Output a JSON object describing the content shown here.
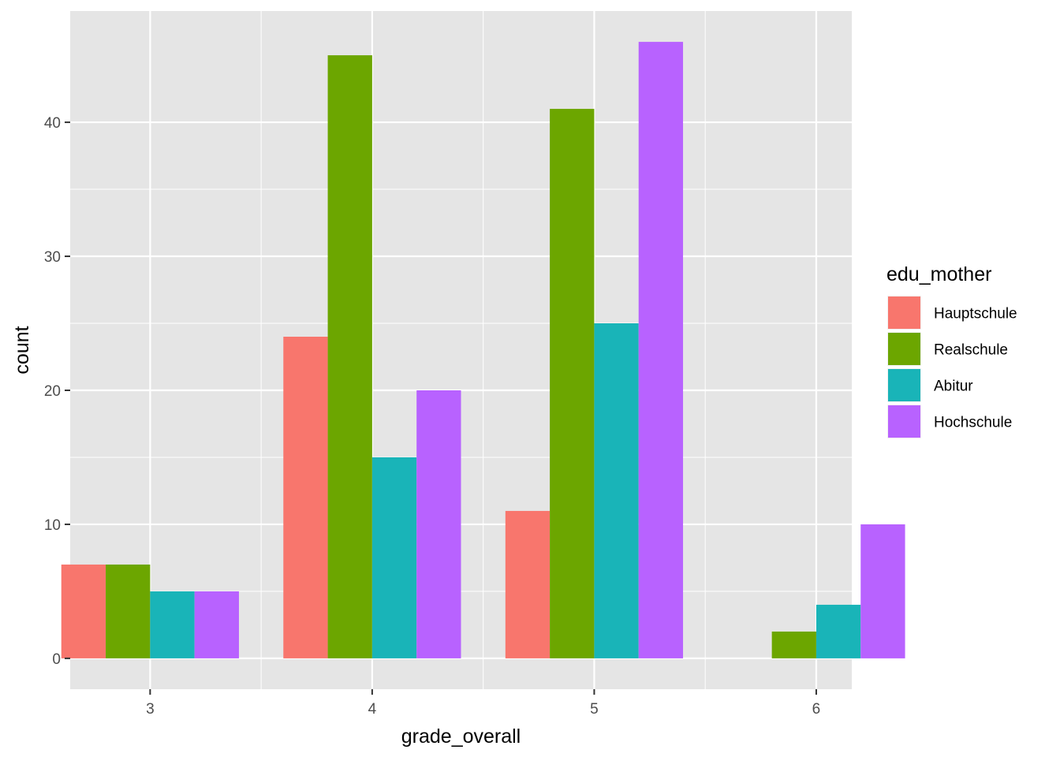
{
  "chart_data": {
    "type": "bar",
    "layout": "dodge",
    "title": "",
    "xlabel": "grade_overall",
    "ylabel": "count",
    "x_ticks": [
      "3",
      "4",
      "5",
      "6"
    ],
    "x_values": [
      3,
      4,
      5,
      6
    ],
    "xlim": [
      2.64,
      6.16
    ],
    "ylim": [
      -2.3,
      48.3
    ],
    "y_ticks": [
      0,
      10,
      20,
      30,
      40
    ],
    "y_tick_labels": [
      "0",
      "10",
      "20",
      "30",
      "40"
    ],
    "bar_group_width": 0.8,
    "grid": true,
    "panel_background": "#e5e5e5",
    "grid_color": "#ffffff",
    "legend": {
      "title": "edu_mother",
      "position": "right"
    },
    "series": [
      {
        "name": "Hauptschule",
        "color": "#f8766d",
        "values": [
          7,
          24,
          11,
          0
        ]
      },
      {
        "name": "Realschule",
        "color": "#6ca600",
        "values": [
          7,
          45,
          41,
          2
        ]
      },
      {
        "name": "Abitur",
        "color": "#19b4b8",
        "values": [
          5,
          15,
          25,
          4
        ]
      },
      {
        "name": "Hochschule",
        "color": "#b862ff",
        "values": [
          5,
          20,
          46,
          10
        ]
      }
    ]
  }
}
